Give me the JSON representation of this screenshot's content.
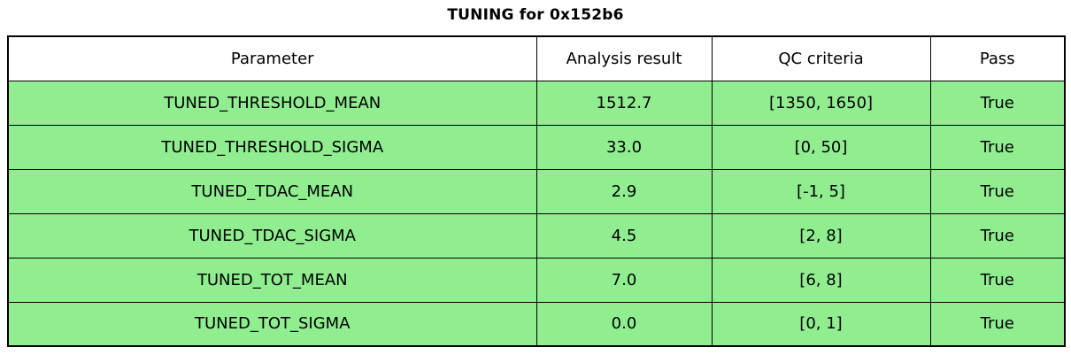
{
  "title": "TUNING for 0x152b6",
  "colors": {
    "row_bg": "#90EE90",
    "header_bg": "#ffffff",
    "border": "#000000",
    "text": "#000000"
  },
  "chart_data": {
    "type": "table",
    "title": "TUNING for 0x152b6",
    "columns": [
      "Parameter",
      "Analysis result",
      "QC criteria",
      "Pass"
    ],
    "rows": [
      [
        "TUNED_THRESHOLD_MEAN",
        "1512.7",
        "[1350, 1650]",
        "True"
      ],
      [
        "TUNED_THRESHOLD_SIGMA",
        "33.0",
        "[0, 50]",
        "True"
      ],
      [
        "TUNED_TDAC_MEAN",
        "2.9",
        "[-1, 5]",
        "True"
      ],
      [
        "TUNED_TDAC_SIGMA",
        "4.5",
        "[2, 8]",
        "True"
      ],
      [
        "TUNED_TOT_MEAN",
        "7.0",
        "[6, 8]",
        "True"
      ],
      [
        "TUNED_TOT_SIGMA",
        "0.0",
        "[0, 1]",
        "True"
      ]
    ],
    "all_rows_pass": true,
    "layout": {
      "header_row_bg": "#ffffff",
      "data_row_bg": "#90EE90",
      "grid": "full-borders",
      "title_position": "top-center"
    }
  }
}
